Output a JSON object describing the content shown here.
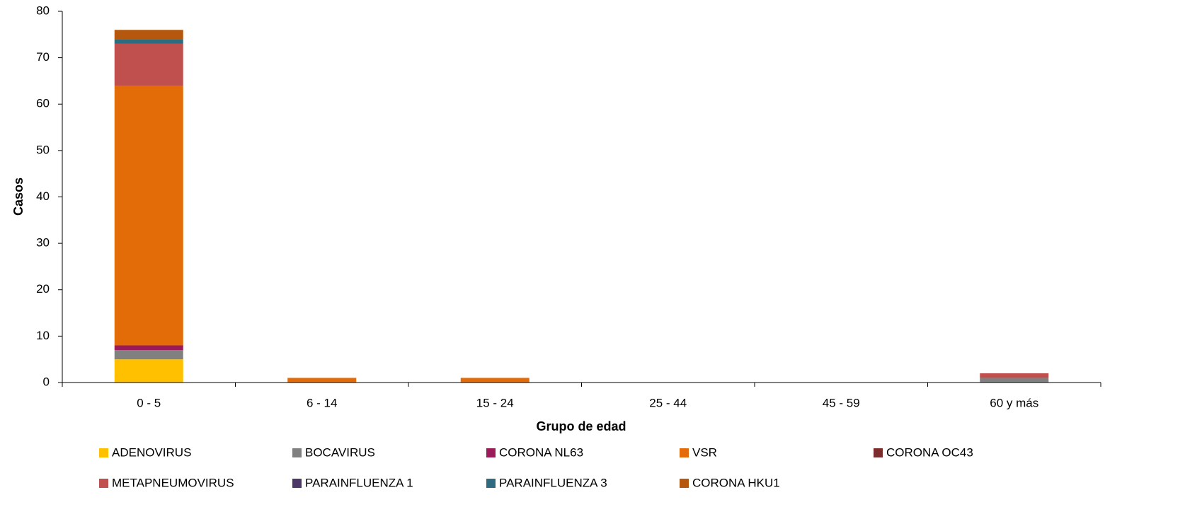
{
  "chart_data": {
    "type": "bar",
    "stacked": true,
    "x_label": "Grupo de edad",
    "y_label": "Casos",
    "categories": [
      "0 - 5",
      "6 - 14",
      "15 - 24",
      "25 - 44",
      "45 - 59",
      "60 y más"
    ],
    "series": [
      {
        "name": "ADENOVIRUS",
        "color": "#ffc000",
        "values": [
          5,
          0,
          0,
          0,
          0,
          0
        ]
      },
      {
        "name": "BOCAVIRUS",
        "color": "#808080",
        "values": [
          2,
          0,
          0,
          0,
          0,
          1
        ]
      },
      {
        "name": "CORONA NL63",
        "color": "#9b1b5a",
        "values": [
          1,
          0,
          0,
          0,
          0,
          0
        ]
      },
      {
        "name": "VSR",
        "color": "#e36c09",
        "values": [
          56,
          1,
          1,
          0,
          0,
          0
        ]
      },
      {
        "name": "CORONA OC43",
        "color": "#7b2c2c",
        "values": [
          0,
          0,
          0,
          0,
          0,
          0
        ]
      },
      {
        "name": "METAPNEUMOVIRUS",
        "color": "#c0504d",
        "values": [
          9,
          0,
          0,
          0,
          0,
          1
        ]
      },
      {
        "name": "PARAINFLUENZA 1",
        "color": "#4b3869",
        "values": [
          0,
          0,
          0,
          0,
          0,
          0
        ]
      },
      {
        "name": "PARAINFLUENZA 3",
        "color": "#2e6b7e",
        "values": [
          1,
          0,
          0,
          0,
          0,
          0
        ]
      },
      {
        "name": "CORONA HKU1",
        "color": "#b5570c",
        "values": [
          2,
          0,
          0,
          0,
          0,
          0
        ]
      }
    ],
    "ylim": [
      0,
      80
    ],
    "yticks": [
      0,
      10,
      20,
      30,
      40,
      50,
      60,
      70,
      80
    ],
    "grid": false
  }
}
